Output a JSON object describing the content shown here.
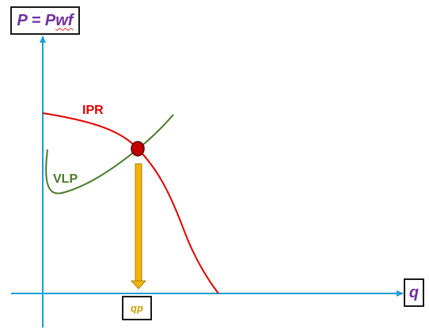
{
  "axes": {
    "y_label_prefix": "P = P",
    "y_label_suffix": "wf",
    "x_label": "q"
  },
  "curves": {
    "ipr_label": "IPR",
    "vlp_label": "VLP"
  },
  "operating_point": {
    "label": "qp"
  },
  "colors": {
    "axis": "#1a9ed8",
    "ipr": "#e00000",
    "vlp": "#4a7a2a",
    "point_fill": "#c00000",
    "arrow": "#f5b400",
    "label_text": "#7030a0",
    "qp_text": "#c9a100"
  }
}
